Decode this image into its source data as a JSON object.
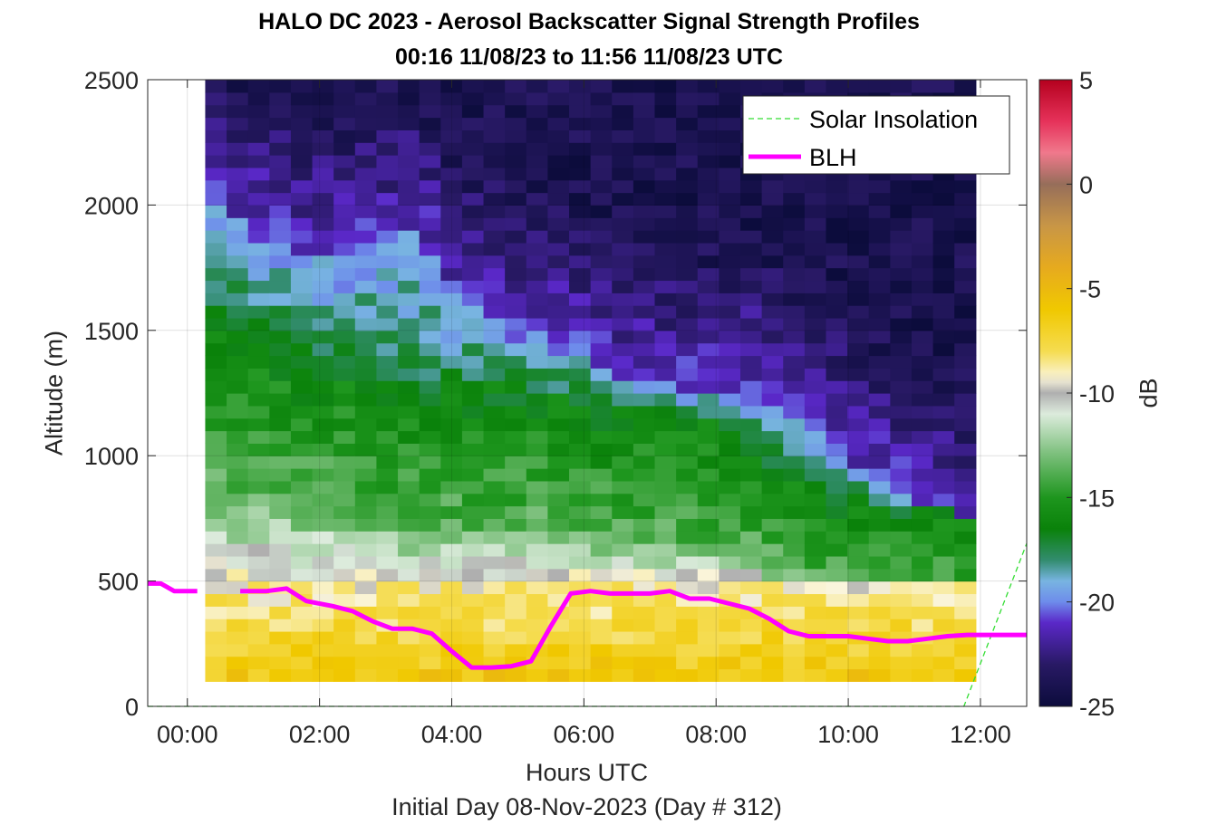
{
  "chart_data": {
    "type": "heatmap",
    "title": "HALO DC 2023 - Aerosol Backscatter Signal Strength Profiles",
    "subtitle": "00:16 11/08/23 to 11:56 11/08/23  UTC",
    "xlabel": "Hours UTC",
    "caption": "Initial Day 08-Nov-2023 (Day # 312)",
    "ylabel": "Altitude (m)",
    "colorbar_label": "dB",
    "xlim": [
      -0.6,
      12.7
    ],
    "ylim": [
      0,
      2500
    ],
    "x_ticks": [
      0,
      2,
      4,
      6,
      8,
      10,
      12
    ],
    "x_tick_labels": [
      "00:00",
      "02:00",
      "04:00",
      "06:00",
      "08:00",
      "10:00",
      "12:00"
    ],
    "y_ticks": [
      0,
      500,
      1000,
      1500,
      2000,
      2500
    ],
    "y_tick_labels": [
      "0",
      "500",
      "1000",
      "1500",
      "2000",
      "2500"
    ],
    "color_range": [
      -25,
      5
    ],
    "colorbar_ticks": [
      5,
      0,
      -5,
      -10,
      -15,
      -20,
      -25
    ],
    "colorbar_tick_labels": [
      "5",
      "0",
      "-5",
      "-10",
      "-15",
      "-20",
      "-25"
    ],
    "grid": true,
    "legend_position": "top-right",
    "heatmap_extent": {
      "x": [
        0.27,
        11.93
      ],
      "y": [
        100,
        2500
      ]
    },
    "heatmap_top_by_column": [
      2500,
      2500,
      2500,
      2500,
      2500,
      2500,
      2500,
      2500,
      2500,
      2500,
      2500,
      2500,
      2500,
      2500,
      2500,
      2500,
      2500,
      2500,
      2500,
      2500,
      2500,
      2500,
      2500,
      2500,
      2500,
      2500,
      2500,
      2500,
      2500,
      2500,
      2500,
      2500,
      2500,
      2500,
      2500,
      2500
    ],
    "signal_profile_by_column": {
      "mixed_layer_top_m": [
        1500,
        1500,
        1480,
        1450,
        1400,
        1400,
        1400,
        1380,
        1300,
        1290,
        1280,
        1280,
        1280,
        1280,
        1280,
        1250,
        1250,
        1250,
        1200,
        1200,
        1200,
        1200,
        1180,
        1150,
        1100,
        1050,
        980,
        950,
        880,
        850,
        840,
        820,
        800,
        780,
        780,
        760
      ],
      "aerosol_top_m": [
        2050,
        1950,
        1900,
        1850,
        1800,
        1800,
        1800,
        1820,
        1850,
        1900,
        1800,
        1650,
        1600,
        1550,
        1500,
        1500,
        1450,
        1420,
        1350,
        1320,
        1300,
        1280,
        1260,
        1250,
        1230,
        1250,
        1200,
        1150,
        1100,
        1000,
        950,
        900,
        850,
        800,
        750,
        700
      ]
    },
    "series": [
      {
        "name": "Solar Insolation",
        "style": "dashed",
        "color": "#33dd33",
        "x": [
          -0.6,
          11.75,
          12.7
        ],
        "y": [
          0,
          0,
          650
        ]
      },
      {
        "name": "BLH",
        "style": "solid",
        "color": "#ff00ff",
        "x": [
          -0.6,
          -0.4,
          -0.2,
          0.15,
          0.5,
          0.8,
          1.2,
          1.5,
          1.8,
          2.2,
          2.5,
          2.8,
          3.1,
          3.4,
          3.7,
          4.0,
          4.3,
          4.6,
          4.9,
          5.2,
          5.5,
          5.8,
          6.1,
          6.4,
          6.7,
          7.0,
          7.3,
          7.6,
          7.9,
          8.2,
          8.5,
          8.8,
          9.1,
          9.4,
          9.7,
          10.0,
          10.3,
          10.6,
          10.9,
          11.2,
          11.5,
          11.8,
          12.1,
          12.4,
          12.7
        ],
        "y": [
          490,
          490,
          460,
          460,
          null,
          460,
          460,
          470,
          420,
          400,
          380,
          340,
          310,
          310,
          290,
          220,
          155,
          155,
          160,
          180,
          320,
          450,
          460,
          450,
          450,
          450,
          460,
          430,
          430,
          410,
          390,
          350,
          300,
          280,
          280,
          280,
          270,
          260,
          260,
          270,
          280,
          285,
          285,
          285,
          285
        ]
      }
    ]
  }
}
